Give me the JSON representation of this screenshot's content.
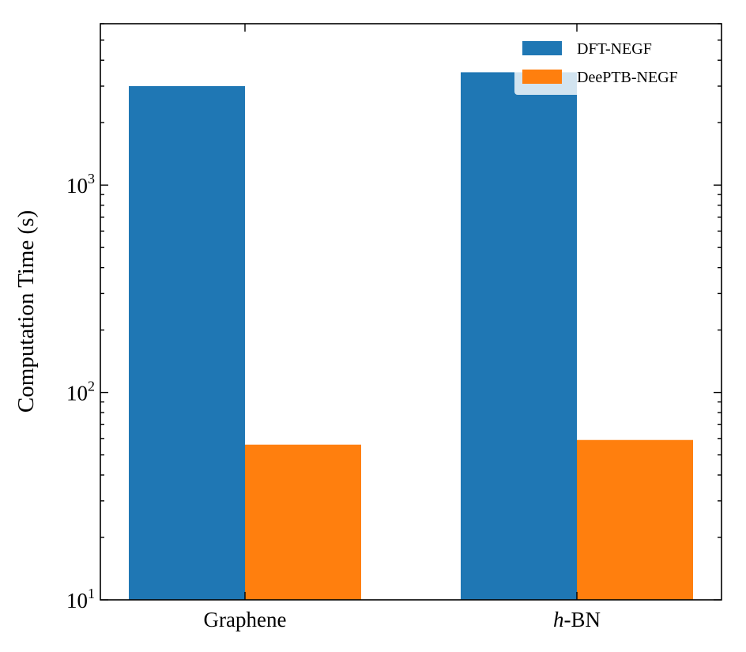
{
  "chart_data": {
    "type": "bar",
    "categories": [
      "Graphene",
      "h-BN"
    ],
    "series": [
      {
        "name": "DFT-NEGF",
        "values": [
          3000,
          3500
        ],
        "color": "#1f77b4"
      },
      {
        "name": "DeePTB-NEGF",
        "values": [
          56,
          59
        ],
        "color": "#ff7f0e"
      }
    ],
    "ylabel": "Computation Time (s)",
    "xlabel": "",
    "title": "",
    "yscale": "log",
    "ylim": [
      10,
      6000
    ],
    "yticks": [
      {
        "value": 10,
        "base": "10",
        "exp": "1"
      },
      {
        "value": 100,
        "base": "10",
        "exp": "2"
      },
      {
        "value": 1000,
        "base": "10",
        "exp": "3"
      }
    ],
    "legend": {
      "placement": "top-right"
    },
    "grid": false
  }
}
